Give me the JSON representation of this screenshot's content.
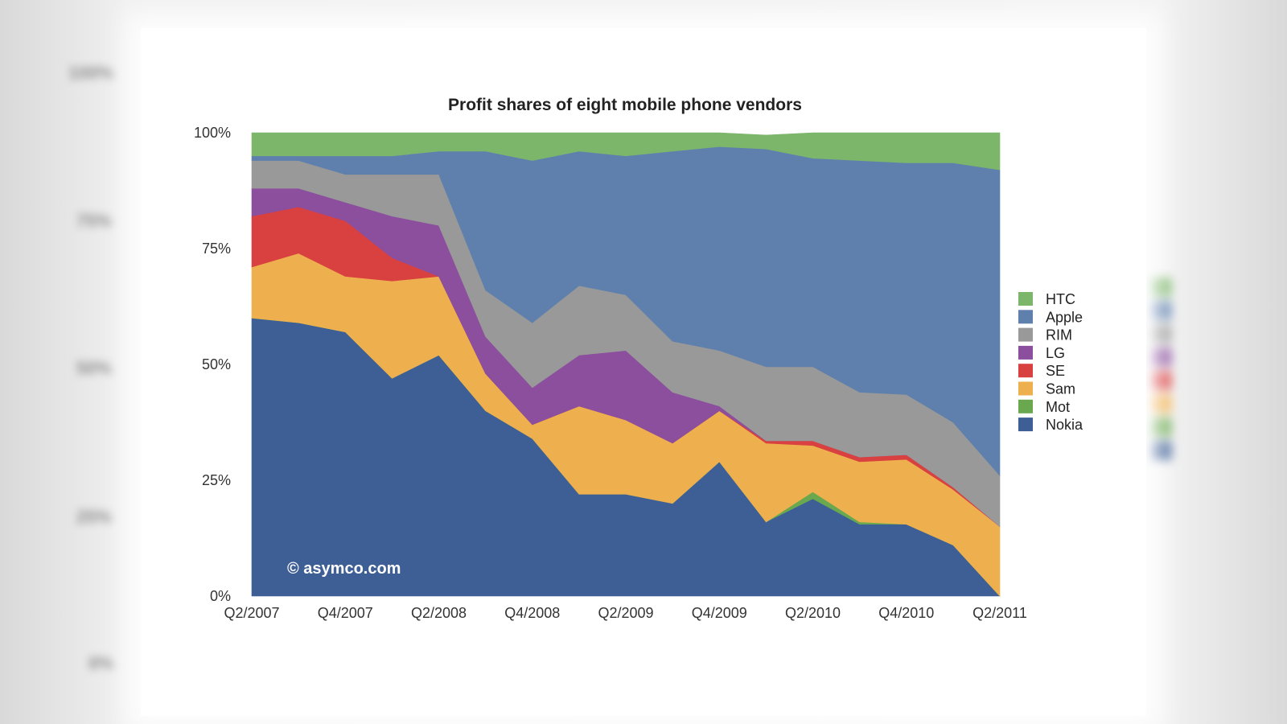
{
  "chart_data": {
    "type": "area",
    "stacked": true,
    "normalized": true,
    "title": "Profit shares of eight mobile phone vendors",
    "categories": [
      "Q2/2007",
      "Q3/2007",
      "Q4/2007",
      "Q1/2008",
      "Q2/2008",
      "Q3/2008",
      "Q4/2008",
      "Q1/2009",
      "Q2/2009",
      "Q3/2009",
      "Q4/2009",
      "Q1/2010",
      "Q2/2010",
      "Q3/2010",
      "Q4/2010",
      "Q1/2011",
      "Q2/2011"
    ],
    "x_tick_labels": [
      "Q2/2007",
      "Q4/2007",
      "Q2/2008",
      "Q4/2008",
      "Q2/2009",
      "Q4/2009",
      "Q2/2010",
      "Q4/2010",
      "Q2/2011"
    ],
    "y_tick_labels": [
      "0%",
      "25%",
      "50%",
      "75%",
      "100%"
    ],
    "ylim": [
      0,
      100
    ],
    "legend_position": "right",
    "watermark": "© asymco.com",
    "series": [
      {
        "name": "Nokia",
        "color": "#3e5f95",
        "values": [
          60,
          59,
          57,
          47,
          52,
          40,
          34,
          22,
          22,
          20,
          29,
          16,
          21,
          15.5,
          15.5,
          11,
          0
        ]
      },
      {
        "name": "Mot",
        "color": "#6aa84f",
        "values": [
          0,
          0,
          0,
          0,
          0,
          0,
          0,
          0,
          0,
          0,
          0,
          0,
          1.5,
          0.5,
          0,
          0,
          0
        ]
      },
      {
        "name": "Sam",
        "color": "#eeb04f",
        "values": [
          11,
          15,
          12,
          21,
          17,
          8,
          3,
          19,
          16,
          13,
          11,
          17,
          10,
          13,
          14,
          12,
          15
        ]
      },
      {
        "name": "SE",
        "color": "#d94040",
        "values": [
          11,
          10,
          12,
          5,
          0,
          0,
          0,
          0,
          0,
          0,
          0,
          0.5,
          1,
          1,
          1,
          0.5,
          0
        ]
      },
      {
        "name": "LG",
        "color": "#8b4f9e",
        "values": [
          6,
          4,
          4,
          9,
          11,
          8,
          8,
          11,
          15,
          11,
          1,
          0,
          0,
          0,
          0,
          0,
          0
        ]
      },
      {
        "name": "RIM",
        "color": "#999999",
        "values": [
          6,
          6,
          6,
          9,
          11,
          10,
          14,
          15,
          12,
          11,
          12,
          16,
          16,
          14,
          13,
          14,
          11
        ]
      },
      {
        "name": "Apple",
        "color": "#5f80ad",
        "values": [
          1,
          1,
          4,
          4,
          5,
          30,
          35,
          29,
          30,
          41,
          44,
          47,
          45,
          50,
          50,
          56,
          66
        ]
      },
      {
        "name": "HTC",
        "color": "#7cb66b",
        "values": [
          5,
          5,
          5,
          5,
          4,
          4,
          6,
          4,
          5,
          4,
          3,
          3,
          5.5,
          6,
          6.5,
          6.5,
          8
        ]
      }
    ],
    "legend_order": [
      "HTC",
      "Apple",
      "RIM",
      "LG",
      "SE",
      "Sam",
      "Mot",
      "Nokia"
    ]
  }
}
